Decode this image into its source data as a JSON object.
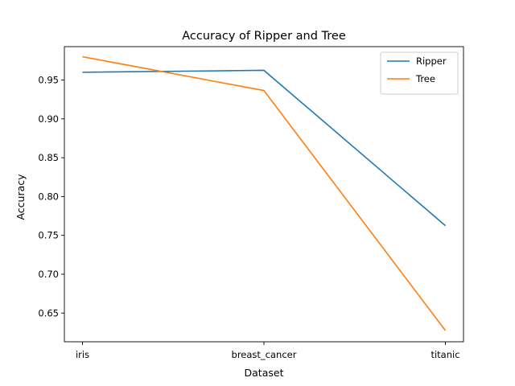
{
  "chart_data": {
    "type": "line",
    "title": "Accuracy of Ripper and Tree",
    "xlabel": "Dataset",
    "ylabel": "Accuracy",
    "categories": [
      "iris",
      "breast_cancer",
      "titanic"
    ],
    "series": [
      {
        "name": "Ripper",
        "color": "#1f77b4",
        "values": [
          0.96,
          0.9625,
          0.7625
        ]
      },
      {
        "name": "Tree",
        "color": "#ff7f0e",
        "values": [
          0.98,
          0.9365,
          0.6275
        ]
      }
    ],
    "ylim": [
      0.613,
      0.993
    ],
    "yticks": [
      "0.65",
      "0.70",
      "0.75",
      "0.80",
      "0.85",
      "0.90",
      "0.95"
    ],
    "ytick_values": [
      0.65,
      0.7,
      0.75,
      0.8,
      0.85,
      0.9,
      0.95
    ],
    "grid": false,
    "legend_position": "top-right"
  }
}
